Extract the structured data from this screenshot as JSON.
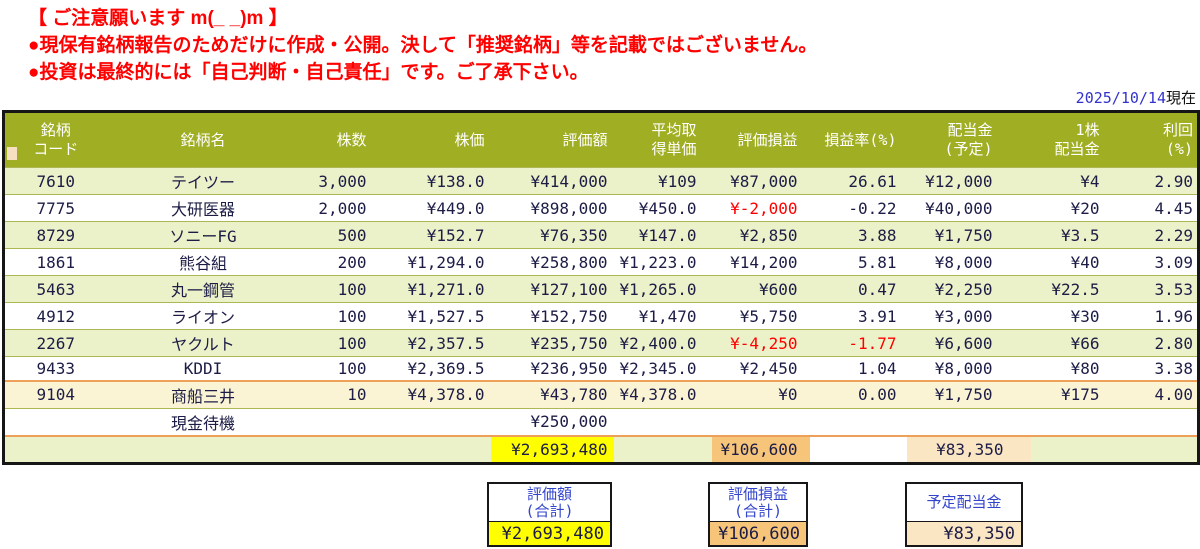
{
  "notice": {
    "title": "【 ご注意願います m(_ _)m 】",
    "line1": "●現保有銘柄報告のためだけに作成・公開。決して「推奨銘柄」等を記載ではございません。",
    "line2": "●投資は最終的には「自己判断・自己責任」です。ご了承下さい。"
  },
  "date": {
    "value": "2025/10/14",
    "suffix": "現在"
  },
  "table": {
    "headers": [
      {
        "lines": [
          "銘柄",
          "コード"
        ]
      },
      {
        "lines": [
          "銘柄名"
        ]
      },
      {
        "lines": [
          "株数"
        ]
      },
      {
        "lines": [
          "株価"
        ]
      },
      {
        "lines": [
          "評価額"
        ]
      },
      {
        "lines": [
          "平均取",
          "得単価"
        ]
      },
      {
        "lines": [
          "評価損益"
        ]
      },
      {
        "lines": [
          "損益率(%)"
        ]
      },
      {
        "lines": [
          "配当金",
          "(予定)"
        ]
      },
      {
        "lines": [
          "1株",
          "配当金"
        ]
      },
      {
        "lines": [
          "利回",
          "(%)"
        ]
      }
    ],
    "rows": [
      {
        "code": "7610",
        "name": "テイツー",
        "shares": "3,000",
        "price": "¥138.0",
        "value": "¥414,000",
        "avg_cost": "¥109",
        "pl": "¥87,000",
        "pl_pct": "26.61",
        "dividend": "¥12,000",
        "div_per_share": "¥4",
        "yield": "2.90",
        "bg": "green",
        "red": []
      },
      {
        "code": "7775",
        "name": "大研医器",
        "shares": "2,000",
        "price": "¥449.0",
        "value": "¥898,000",
        "avg_cost": "¥450.0",
        "pl": "¥-2,000",
        "pl_pct": "-0.22",
        "dividend": "¥40,000",
        "div_per_share": "¥20",
        "yield": "4.45",
        "bg": "white",
        "red": [
          "pl"
        ]
      },
      {
        "code": "8729",
        "name": "ソニーFG",
        "shares": "500",
        "price": "¥152.7",
        "value": "¥76,350",
        "avg_cost": "¥147.0",
        "pl": "¥2,850",
        "pl_pct": "3.88",
        "dividend": "¥1,750",
        "div_per_share": "¥3.5",
        "yield": "2.29",
        "bg": "green",
        "red": []
      },
      {
        "code": "1861",
        "name": "熊谷組",
        "shares": "200",
        "price": "¥1,294.0",
        "value": "¥258,800",
        "avg_cost": "¥1,223.0",
        "pl": "¥14,200",
        "pl_pct": "5.81",
        "dividend": "¥8,000",
        "div_per_share": "¥40",
        "yield": "3.09",
        "bg": "white",
        "red": []
      },
      {
        "code": "5463",
        "name": "丸一鋼管",
        "shares": "100",
        "price": "¥1,271.0",
        "value": "¥127,100",
        "avg_cost": "¥1,265.0",
        "pl": "¥600",
        "pl_pct": "0.47",
        "dividend": "¥2,250",
        "div_per_share": "¥22.5",
        "yield": "3.53",
        "bg": "green",
        "red": []
      },
      {
        "code": "4912",
        "name": "ライオン",
        "shares": "100",
        "price": "¥1,527.5",
        "value": "¥152,750",
        "avg_cost": "¥1,470",
        "pl": "¥5,750",
        "pl_pct": "3.91",
        "dividend": "¥3,000",
        "div_per_share": "¥30",
        "yield": "1.96",
        "bg": "white",
        "red": []
      },
      {
        "code": "2267",
        "name": "ヤクルト",
        "shares": "100",
        "price": "¥2,357.5",
        "value": "¥235,750",
        "avg_cost": "¥2,400.0",
        "pl": "¥-4,250",
        "pl_pct": "-1.77",
        "dividend": "¥6,600",
        "div_per_share": "¥66",
        "yield": "2.80",
        "bg": "green",
        "red": [
          "pl",
          "pl_pct"
        ]
      },
      {
        "code": "9433",
        "name": "KDDI",
        "shares": "100",
        "price": "¥2,369.5",
        "value": "¥236,950",
        "avg_cost": "¥2,345.0",
        "pl": "¥2,450",
        "pl_pct": "1.04",
        "dividend": "¥8,000",
        "div_per_share": "¥80",
        "yield": "3.38",
        "bg": "white",
        "red": []
      },
      {
        "code": "9104",
        "name": "商船三井",
        "shares": "10",
        "price": "¥4,378.0",
        "value": "¥43,780",
        "avg_cost": "¥4,378.0",
        "pl": "¥0",
        "pl_pct": "0.00",
        "dividend": "¥1,750",
        "div_per_share": "¥175",
        "yield": "4.00",
        "bg": "cream",
        "top_border": "orange",
        "red": []
      }
    ],
    "cash_row": {
      "name": "現金待機",
      "value": "¥250,000"
    },
    "total_row": {
      "value": "¥2,693,480",
      "pl": "¥106,600",
      "dividend": "¥83,350"
    }
  },
  "summary_boxes": [
    {
      "label_lines": [
        "評価額",
        "(合計)"
      ],
      "value": "¥2,693,480",
      "value_bg": "#ffff00"
    },
    {
      "label_lines": [
        "評価損益",
        "(合計)"
      ],
      "value": "¥106,600",
      "value_bg": "#f6c579"
    },
    {
      "label_lines": [
        "予定配当金"
      ],
      "value": "¥83,350",
      "value_bg": "#fbe6c4"
    }
  ],
  "colors": {
    "notice_red": "#ff0000",
    "header_bg": "#a0ae24",
    "row_green": "#ebf1c8",
    "row_cream": "#faf4d4",
    "grid_line": "#adb855",
    "orange_divider": "#eda05a",
    "highlight_yellow": "#ffff00",
    "highlight_orange": "#f6c579",
    "highlight_peach": "#fbe6c4",
    "negative_red": "#ff0000",
    "date_blue": "#3333cc"
  }
}
